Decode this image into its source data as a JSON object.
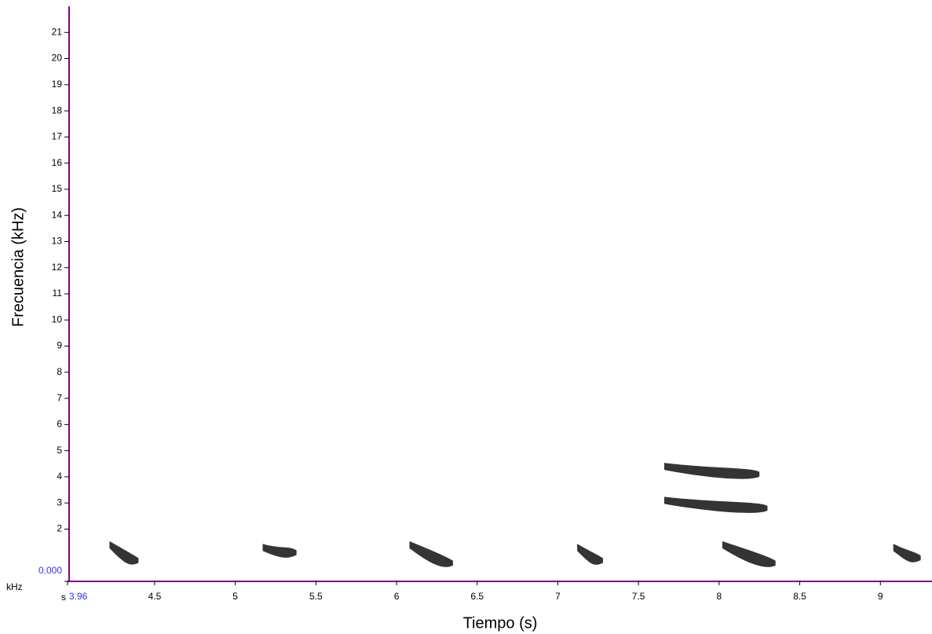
{
  "chart_data": {
    "type": "spectrogram",
    "xlabel": "Tiempo (s)",
    "ylabel": "Frecuencia (kHz)",
    "x_unit": "s",
    "y_unit": "kHz",
    "xlim": [
      3.96,
      9.32
    ],
    "ylim": [
      0,
      22
    ],
    "xticks": [
      3.96,
      4.5,
      5,
      5.5,
      6,
      6.5,
      7,
      7.5,
      8,
      8.5,
      9
    ],
    "yticks": [
      {
        "value": 0,
        "label": "0.000"
      },
      2,
      3,
      4,
      5,
      6,
      7,
      8,
      9,
      10,
      11,
      12,
      13,
      14,
      15,
      16,
      17,
      18,
      19,
      20,
      21
    ],
    "axis_color": "#800080",
    "origin_color": "#3333ee",
    "color": "#111111",
    "calls": [
      {
        "start": 4.22,
        "end": 4.4,
        "high": 1.4,
        "low": 0.8
      },
      {
        "start": 5.17,
        "end": 5.38,
        "high": 1.3,
        "low": 1.1
      },
      {
        "start": 6.08,
        "end": 6.35,
        "high": 1.4,
        "low": 0.7
      },
      {
        "start": 7.12,
        "end": 7.28,
        "high": 1.3,
        "low": 0.8
      },
      {
        "start": 8.02,
        "end": 8.35,
        "high": 1.4,
        "low": 0.7
      },
      {
        "start": 9.08,
        "end": 9.25,
        "high": 1.3,
        "low": 0.9
      },
      {
        "start": 7.66,
        "end": 8.25,
        "high": 4.4,
        "low": 4.1
      },
      {
        "start": 7.66,
        "end": 8.3,
        "high": 3.1,
        "low": 2.8
      }
    ]
  }
}
